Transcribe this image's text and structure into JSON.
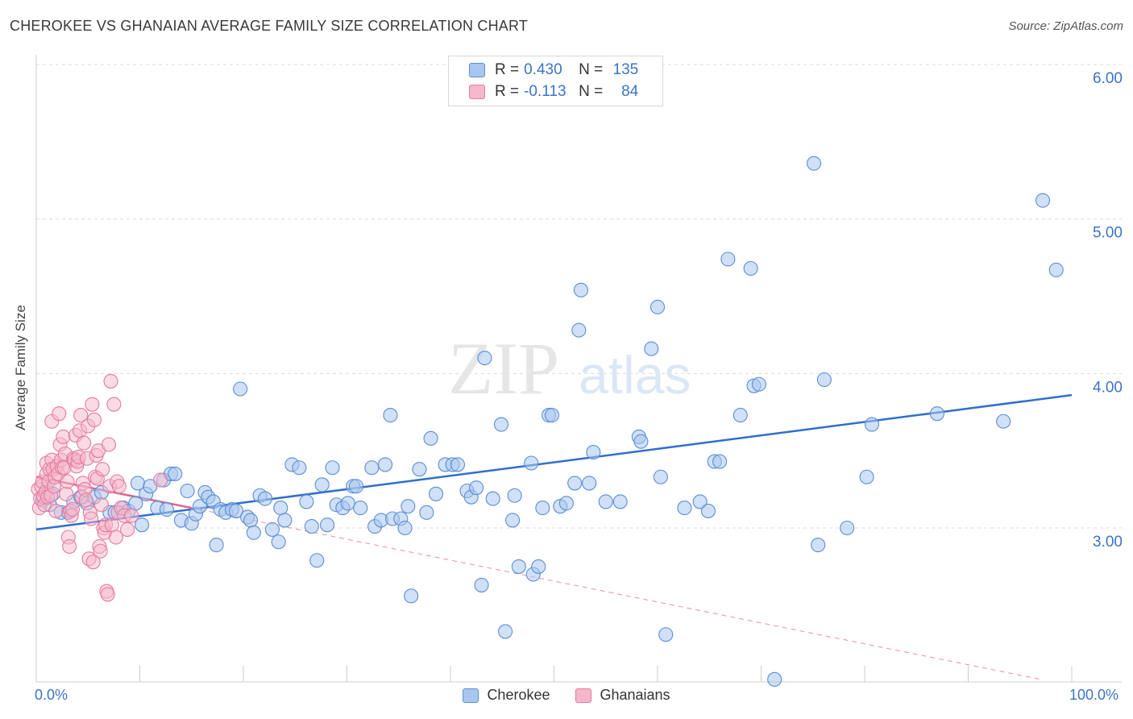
{
  "header": {
    "title": "CHEROKEE VS GHANAIAN AVERAGE FAMILY SIZE CORRELATION CHART",
    "source": "Source: ZipAtlas.com"
  },
  "legend": {
    "r_label": "R =",
    "n_label": "N =",
    "rows": [
      {
        "r": "0.430",
        "n": "135"
      },
      {
        "r": "-0.113",
        "n": "84"
      }
    ]
  },
  "watermark": {
    "zip": "ZIP",
    "atlas": "atlas"
  },
  "colors": {
    "cherokee_fill": "#a9c6ef",
    "cherokee_stroke": "#5b8ed6",
    "cherokee_line": "#2f6fcc",
    "ghanaian_fill": "#f5b7c9",
    "ghanaian_stroke": "#e57aa0",
    "ghanaian_line": "#e4608a",
    "tick_label": "#3a74c9",
    "grid": "#dcdcdc"
  },
  "chart_data": {
    "type": "scatter",
    "title": "CHEROKEE VS GHANAIAN AVERAGE FAMILY SIZE CORRELATION CHART",
    "xlabel": "",
    "ylabel": "Average Family Size",
    "xlim": [
      0,
      100
    ],
    "ylim": [
      2.0,
      6.1
    ],
    "x_tick_labels": [
      "0.0%",
      "100.0%"
    ],
    "y_ticks": [
      3.0,
      4.0,
      5.0,
      6.0
    ],
    "y_tick_labels": [
      "3.00",
      "4.00",
      "5.00",
      "6.00"
    ],
    "grid": true,
    "legend_placement": "top-center",
    "series": [
      {
        "name": "Cherokee",
        "r": 0.43,
        "n": 135,
        "trend": {
          "x": [
            0,
            100
          ],
          "y": [
            2.99,
            3.86
          ]
        },
        "points": [
          [
            0.6,
            3.18
          ],
          [
            1.0,
            3.25
          ],
          [
            1.3,
            3.15
          ],
          [
            1.6,
            3.22
          ],
          [
            2.4,
            3.1
          ],
          [
            3.1,
            3.1
          ],
          [
            3.6,
            3.17
          ],
          [
            4.3,
            3.2
          ],
          [
            4.9,
            3.16
          ],
          [
            5.6,
            3.2
          ],
          [
            6.3,
            3.23
          ],
          [
            7.1,
            3.1
          ],
          [
            7.6,
            3.1
          ],
          [
            8.4,
            3.13
          ],
          [
            8.9,
            3.11
          ],
          [
            9.6,
            3.16
          ],
          [
            9.8,
            3.29
          ],
          [
            10.2,
            3.02
          ],
          [
            10.6,
            3.22
          ],
          [
            11.0,
            3.27
          ],
          [
            11.7,
            3.13
          ],
          [
            12.3,
            3.31
          ],
          [
            12.6,
            3.12
          ],
          [
            13.0,
            3.35
          ],
          [
            13.4,
            3.35
          ],
          [
            14.0,
            3.05
          ],
          [
            14.6,
            3.24
          ],
          [
            15.0,
            3.03
          ],
          [
            15.4,
            3.09
          ],
          [
            15.8,
            3.14
          ],
          [
            16.3,
            3.23
          ],
          [
            16.6,
            3.2
          ],
          [
            17.1,
            3.17
          ],
          [
            17.4,
            2.89
          ],
          [
            17.8,
            3.12
          ],
          [
            18.3,
            3.1
          ],
          [
            18.9,
            3.12
          ],
          [
            19.3,
            3.11
          ],
          [
            19.7,
            3.9
          ],
          [
            20.4,
            3.07
          ],
          [
            20.7,
            3.05
          ],
          [
            21.0,
            2.97
          ],
          [
            21.6,
            3.21
          ],
          [
            22.1,
            3.19
          ],
          [
            22.8,
            2.99
          ],
          [
            23.4,
            2.91
          ],
          [
            23.6,
            3.13
          ],
          [
            24.0,
            3.05
          ],
          [
            24.7,
            3.41
          ],
          [
            25.4,
            3.39
          ],
          [
            26.1,
            3.17
          ],
          [
            26.6,
            3.01
          ],
          [
            27.1,
            2.79
          ],
          [
            27.6,
            3.28
          ],
          [
            28.1,
            3.02
          ],
          [
            28.6,
            3.39
          ],
          [
            29.0,
            3.15
          ],
          [
            29.6,
            3.13
          ],
          [
            30.1,
            3.16
          ],
          [
            30.6,
            3.27
          ],
          [
            30.9,
            3.27
          ],
          [
            31.3,
            3.13
          ],
          [
            32.4,
            3.39
          ],
          [
            32.7,
            3.01
          ],
          [
            33.3,
            3.05
          ],
          [
            33.7,
            3.41
          ],
          [
            34.2,
            3.73
          ],
          [
            34.4,
            3.06
          ],
          [
            35.2,
            3.06
          ],
          [
            35.6,
            3.0
          ],
          [
            35.9,
            3.14
          ],
          [
            36.2,
            2.56
          ],
          [
            37.0,
            3.38
          ],
          [
            37.7,
            3.1
          ],
          [
            38.1,
            3.58
          ],
          [
            38.6,
            3.22
          ],
          [
            39.5,
            3.41
          ],
          [
            40.2,
            3.41
          ],
          [
            40.7,
            3.41
          ],
          [
            41.6,
            3.24
          ],
          [
            42.0,
            3.2
          ],
          [
            42.5,
            3.26
          ],
          [
            43.0,
            2.63
          ],
          [
            43.3,
            4.1
          ],
          [
            44.1,
            3.19
          ],
          [
            44.9,
            3.67
          ],
          [
            45.3,
            2.33
          ],
          [
            46.0,
            3.05
          ],
          [
            46.2,
            3.21
          ],
          [
            46.6,
            2.75
          ],
          [
            47.8,
            3.42
          ],
          [
            48.0,
            2.7
          ],
          [
            48.5,
            2.75
          ],
          [
            48.9,
            3.13
          ],
          [
            49.5,
            3.73
          ],
          [
            49.8,
            3.73
          ],
          [
            50.6,
            3.14
          ],
          [
            51.2,
            3.16
          ],
          [
            52.0,
            3.29
          ],
          [
            52.4,
            4.28
          ],
          [
            52.6,
            4.54
          ],
          [
            53.4,
            3.29
          ],
          [
            53.8,
            3.49
          ],
          [
            55.0,
            3.17
          ],
          [
            56.4,
            3.17
          ],
          [
            58.2,
            3.59
          ],
          [
            58.4,
            3.56
          ],
          [
            59.4,
            4.16
          ],
          [
            60.0,
            4.43
          ],
          [
            60.3,
            3.33
          ],
          [
            60.8,
            2.31
          ],
          [
            62.6,
            3.13
          ],
          [
            64.1,
            3.17
          ],
          [
            64.9,
            3.11
          ],
          [
            65.5,
            3.43
          ],
          [
            66.0,
            3.43
          ],
          [
            66.8,
            4.74
          ],
          [
            68.0,
            3.73
          ],
          [
            69.0,
            4.68
          ],
          [
            69.3,
            3.92
          ],
          [
            69.8,
            3.93
          ],
          [
            71.3,
            2.02
          ],
          [
            75.1,
            5.36
          ],
          [
            75.5,
            2.89
          ],
          [
            76.1,
            3.96
          ],
          [
            78.3,
            3.0
          ],
          [
            80.2,
            3.33
          ],
          [
            80.7,
            3.67
          ],
          [
            87.0,
            3.74
          ],
          [
            93.4,
            3.69
          ],
          [
            97.2,
            5.12
          ],
          [
            98.5,
            4.67
          ]
        ]
      },
      {
        "name": "Ghanaians",
        "r": -0.113,
        "n": 84,
        "trend_solid": {
          "x": [
            0,
            15
          ],
          "y": [
            3.33,
            3.13
          ]
        },
        "trend_dashed": {
          "x": [
            15,
            97
          ],
          "y": [
            3.13,
            2.02
          ]
        },
        "points": [
          [
            0.2,
            3.25
          ],
          [
            0.3,
            3.13
          ],
          [
            0.4,
            3.19
          ],
          [
            0.5,
            3.27
          ],
          [
            0.6,
            3.3
          ],
          [
            0.7,
            3.2
          ],
          [
            0.8,
            3.15
          ],
          [
            0.9,
            3.23
          ],
          [
            1.0,
            3.35
          ],
          [
            1.0,
            3.42
          ],
          [
            1.1,
            3.2
          ],
          [
            1.2,
            3.3
          ],
          [
            1.3,
            3.38
          ],
          [
            1.4,
            3.21
          ],
          [
            1.5,
            3.69
          ],
          [
            1.5,
            3.44
          ],
          [
            1.6,
            3.38
          ],
          [
            1.7,
            3.27
          ],
          [
            1.8,
            3.33
          ],
          [
            1.9,
            3.11
          ],
          [
            2.0,
            3.4
          ],
          [
            2.1,
            3.35
          ],
          [
            2.2,
            3.74
          ],
          [
            2.3,
            3.54
          ],
          [
            2.4,
            3.44
          ],
          [
            2.5,
            3.39
          ],
          [
            2.6,
            3.59
          ],
          [
            2.7,
            3.39
          ],
          [
            2.8,
            3.48
          ],
          [
            2.9,
            3.22
          ],
          [
            3.0,
            3.3
          ],
          [
            3.1,
            2.94
          ],
          [
            3.2,
            2.88
          ],
          [
            3.3,
            3.11
          ],
          [
            3.4,
            3.08
          ],
          [
            3.5,
            3.12
          ],
          [
            3.6,
            3.45
          ],
          [
            3.7,
            3.44
          ],
          [
            3.8,
            3.6
          ],
          [
            3.9,
            3.4
          ],
          [
            4.0,
            3.43
          ],
          [
            4.1,
            3.46
          ],
          [
            4.2,
            3.63
          ],
          [
            4.3,
            3.73
          ],
          [
            4.4,
            3.2
          ],
          [
            4.5,
            3.29
          ],
          [
            4.6,
            3.55
          ],
          [
            4.7,
            3.25
          ],
          [
            4.8,
            3.18
          ],
          [
            4.9,
            3.45
          ],
          [
            5.0,
            3.66
          ],
          [
            5.1,
            2.8
          ],
          [
            5.2,
            3.1
          ],
          [
            5.3,
            3.06
          ],
          [
            5.4,
            3.8
          ],
          [
            5.5,
            2.78
          ],
          [
            5.6,
            3.7
          ],
          [
            5.7,
            3.33
          ],
          [
            5.8,
            3.47
          ],
          [
            5.9,
            3.32
          ],
          [
            6.0,
            3.5
          ],
          [
            6.1,
            2.88
          ],
          [
            6.2,
            2.85
          ],
          [
            6.3,
            3.15
          ],
          [
            6.4,
            3.38
          ],
          [
            6.5,
            3.0
          ],
          [
            6.6,
            2.97
          ],
          [
            6.7,
            3.02
          ],
          [
            6.8,
            2.59
          ],
          [
            6.9,
            2.57
          ],
          [
            7.0,
            3.54
          ],
          [
            7.1,
            3.27
          ],
          [
            7.2,
            3.95
          ],
          [
            7.3,
            3.02
          ],
          [
            7.5,
            3.8
          ],
          [
            7.7,
            2.94
          ],
          [
            7.8,
            3.3
          ],
          [
            7.9,
            3.1
          ],
          [
            8.0,
            3.27
          ],
          [
            8.2,
            3.13
          ],
          [
            8.5,
            3.08
          ],
          [
            8.8,
            2.99
          ],
          [
            9.2,
            3.08
          ],
          [
            12.0,
            3.31
          ]
        ]
      }
    ]
  },
  "bottom_legend": {
    "items": [
      {
        "label": "Cherokee"
      },
      {
        "label": "Ghanaians"
      }
    ]
  }
}
